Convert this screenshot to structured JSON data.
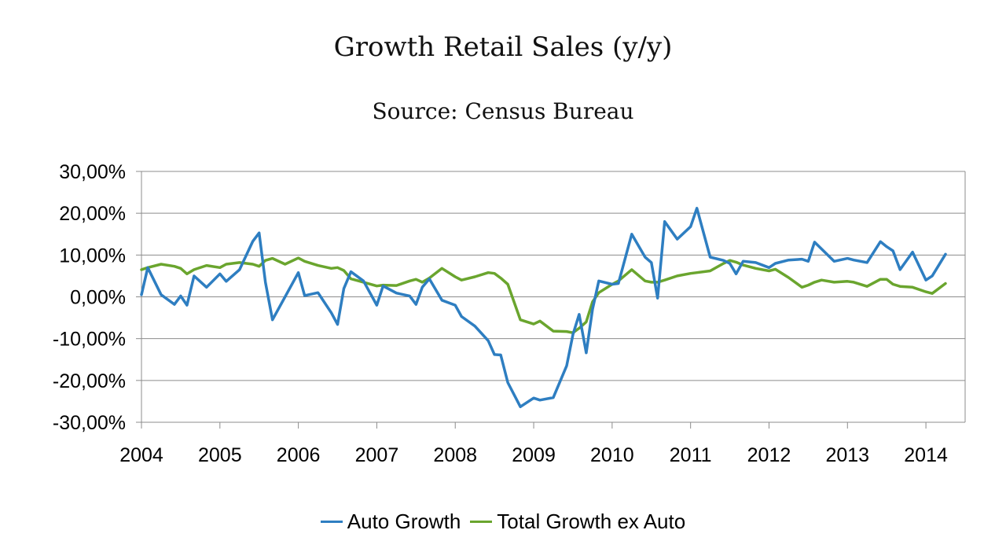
{
  "chart_data": {
    "type": "line",
    "title": "Growth Retail Sales (y/y)",
    "subtitle": "Source: Census Bureau",
    "xlabel": "",
    "ylabel": "",
    "x_tick_labels": [
      "2004",
      "2005",
      "2006",
      "2007",
      "2008",
      "2009",
      "2010",
      "2011",
      "2012",
      "2013",
      "2014"
    ],
    "xlim": [
      2004.0,
      2014.5
    ],
    "ylim": [
      -30,
      30
    ],
    "y_ticks": [
      30,
      20,
      10,
      0,
      -10,
      -20,
      -30
    ],
    "y_tick_labels": [
      "30,00%",
      "20,00%",
      "10,00%",
      "0,00%",
      "-10,00%",
      "-20,00%",
      "-30,00%"
    ],
    "grid": "horizontal",
    "legend_position": "bottom",
    "series": [
      {
        "name": "Auto Growth",
        "color": "#2E7EC1",
        "points": [
          [
            2004.0,
            0.5
          ],
          [
            2004.08,
            7.0
          ],
          [
            2004.25,
            0.5
          ],
          [
            2004.42,
            -1.8
          ],
          [
            2004.5,
            0.2
          ],
          [
            2004.58,
            -2.0
          ],
          [
            2004.67,
            5.0
          ],
          [
            2004.83,
            2.3
          ],
          [
            2005.0,
            5.5
          ],
          [
            2005.08,
            3.7
          ],
          [
            2005.25,
            6.5
          ],
          [
            2005.42,
            13.3
          ],
          [
            2005.5,
            15.3
          ],
          [
            2005.58,
            3.5
          ],
          [
            2005.67,
            -5.5
          ],
          [
            2006.0,
            5.8
          ],
          [
            2006.08,
            0.3
          ],
          [
            2006.25,
            1.0
          ],
          [
            2006.42,
            -3.8
          ],
          [
            2006.5,
            -6.6
          ],
          [
            2006.58,
            2.0
          ],
          [
            2006.67,
            6.0
          ],
          [
            2006.83,
            3.8
          ],
          [
            2007.0,
            -2.0
          ],
          [
            2007.08,
            2.6
          ],
          [
            2007.25,
            0.9
          ],
          [
            2007.42,
            0.2
          ],
          [
            2007.5,
            -1.8
          ],
          [
            2007.58,
            2.3
          ],
          [
            2007.67,
            4.3
          ],
          [
            2007.83,
            -0.8
          ],
          [
            2008.0,
            -2.0
          ],
          [
            2008.08,
            -4.7
          ],
          [
            2008.25,
            -7.0
          ],
          [
            2008.42,
            -10.5
          ],
          [
            2008.5,
            -13.8
          ],
          [
            2008.58,
            -13.9
          ],
          [
            2008.67,
            -20.5
          ],
          [
            2008.83,
            -26.3
          ],
          [
            2009.0,
            -24.2
          ],
          [
            2009.08,
            -24.7
          ],
          [
            2009.25,
            -24.1
          ],
          [
            2009.42,
            -16.5
          ],
          [
            2009.5,
            -9.0
          ],
          [
            2009.58,
            -4.2
          ],
          [
            2009.67,
            -13.4
          ],
          [
            2009.75,
            -3.0
          ],
          [
            2009.83,
            3.8
          ],
          [
            2010.0,
            3.0
          ],
          [
            2010.08,
            3.2
          ],
          [
            2010.25,
            15.0
          ],
          [
            2010.42,
            9.5
          ],
          [
            2010.5,
            8.2
          ],
          [
            2010.58,
            -0.3
          ],
          [
            2010.67,
            18.0
          ],
          [
            2010.83,
            13.8
          ],
          [
            2011.0,
            16.8
          ],
          [
            2011.08,
            21.2
          ],
          [
            2011.25,
            9.5
          ],
          [
            2011.42,
            8.7
          ],
          [
            2011.5,
            8.0
          ],
          [
            2011.58,
            5.5
          ],
          [
            2011.67,
            8.5
          ],
          [
            2011.83,
            8.2
          ],
          [
            2012.0,
            7.0
          ],
          [
            2012.08,
            8.0
          ],
          [
            2012.25,
            8.8
          ],
          [
            2012.42,
            9.0
          ],
          [
            2012.5,
            8.5
          ],
          [
            2012.58,
            13.1
          ],
          [
            2012.83,
            8.5
          ],
          [
            2013.0,
            9.2
          ],
          [
            2013.08,
            8.8
          ],
          [
            2013.25,
            8.2
          ],
          [
            2013.42,
            13.2
          ],
          [
            2013.5,
            12.0
          ],
          [
            2013.58,
            11.0
          ],
          [
            2013.67,
            6.5
          ],
          [
            2013.83,
            10.7
          ],
          [
            2014.0,
            4.0
          ],
          [
            2014.08,
            5.0
          ],
          [
            2014.25,
            10.2
          ]
        ]
      },
      {
        "name": "Total Growth ex Auto",
        "color": "#6AA52E",
        "points": [
          [
            2004.0,
            6.5
          ],
          [
            2004.08,
            7.0
          ],
          [
            2004.25,
            7.8
          ],
          [
            2004.42,
            7.3
          ],
          [
            2004.5,
            6.8
          ],
          [
            2004.58,
            5.5
          ],
          [
            2004.67,
            6.5
          ],
          [
            2004.83,
            7.5
          ],
          [
            2005.0,
            7.0
          ],
          [
            2005.08,
            7.8
          ],
          [
            2005.25,
            8.2
          ],
          [
            2005.42,
            7.8
          ],
          [
            2005.5,
            7.3
          ],
          [
            2005.58,
            8.7
          ],
          [
            2005.67,
            9.2
          ],
          [
            2005.83,
            7.8
          ],
          [
            2006.0,
            9.3
          ],
          [
            2006.08,
            8.5
          ],
          [
            2006.25,
            7.5
          ],
          [
            2006.42,
            6.8
          ],
          [
            2006.5,
            7.0
          ],
          [
            2006.58,
            6.3
          ],
          [
            2006.67,
            4.3
          ],
          [
            2006.83,
            3.5
          ],
          [
            2007.0,
            2.6
          ],
          [
            2007.08,
            2.8
          ],
          [
            2007.25,
            2.7
          ],
          [
            2007.42,
            3.8
          ],
          [
            2007.5,
            4.2
          ],
          [
            2007.58,
            3.5
          ],
          [
            2007.67,
            4.5
          ],
          [
            2007.83,
            6.8
          ],
          [
            2008.0,
            4.8
          ],
          [
            2008.08,
            4.0
          ],
          [
            2008.25,
            4.8
          ],
          [
            2008.42,
            5.8
          ],
          [
            2008.5,
            5.6
          ],
          [
            2008.58,
            4.5
          ],
          [
            2008.67,
            3.0
          ],
          [
            2008.83,
            -5.5
          ],
          [
            2009.0,
            -6.5
          ],
          [
            2009.08,
            -5.8
          ],
          [
            2009.25,
            -8.2
          ],
          [
            2009.42,
            -8.3
          ],
          [
            2009.5,
            -8.6
          ],
          [
            2009.58,
            -7.5
          ],
          [
            2009.67,
            -6.0
          ],
          [
            2009.75,
            -1.2
          ],
          [
            2009.83,
            1.0
          ],
          [
            2010.0,
            3.0
          ],
          [
            2010.08,
            3.8
          ],
          [
            2010.25,
            6.5
          ],
          [
            2010.42,
            3.8
          ],
          [
            2010.5,
            3.5
          ],
          [
            2010.58,
            3.5
          ],
          [
            2010.67,
            4.0
          ],
          [
            2010.83,
            5.0
          ],
          [
            2011.0,
            5.6
          ],
          [
            2011.08,
            5.8
          ],
          [
            2011.25,
            6.2
          ],
          [
            2011.42,
            8.0
          ],
          [
            2011.5,
            8.7
          ],
          [
            2011.58,
            8.3
          ],
          [
            2011.67,
            7.6
          ],
          [
            2011.83,
            6.8
          ],
          [
            2012.0,
            6.2
          ],
          [
            2012.08,
            6.6
          ],
          [
            2012.25,
            4.6
          ],
          [
            2012.42,
            2.3
          ],
          [
            2012.5,
            2.8
          ],
          [
            2012.58,
            3.5
          ],
          [
            2012.67,
            4.0
          ],
          [
            2012.83,
            3.5
          ],
          [
            2013.0,
            3.7
          ],
          [
            2013.08,
            3.5
          ],
          [
            2013.25,
            2.5
          ],
          [
            2013.42,
            4.2
          ],
          [
            2013.5,
            4.2
          ],
          [
            2013.58,
            3.0
          ],
          [
            2013.67,
            2.5
          ],
          [
            2013.83,
            2.3
          ],
          [
            2014.0,
            1.2
          ],
          [
            2014.08,
            0.8
          ],
          [
            2014.25,
            3.2
          ]
        ]
      }
    ]
  }
}
